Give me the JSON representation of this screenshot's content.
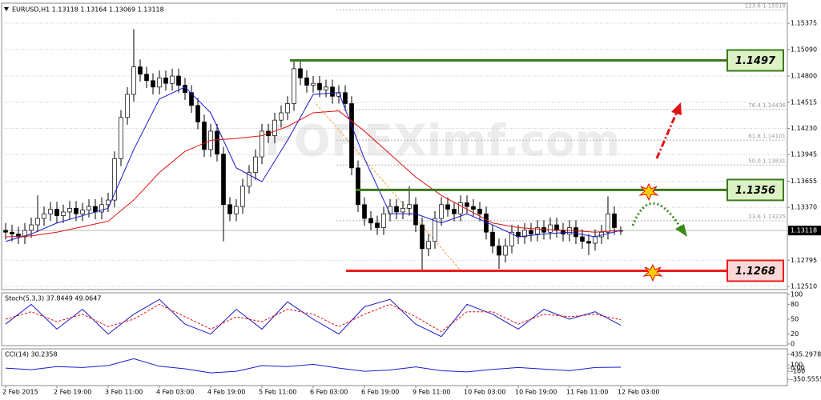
{
  "chart_data": [
    {
      "type": "candlestick",
      "title": "EURUSD,H1  1.13118 1.13164 1.13069 1.13118",
      "watermark": "FOREXimf.com",
      "categories": [
        "2 Feb 2015",
        null,
        null,
        null,
        null,
        null,
        null,
        null,
        "2 Feb 19:00",
        null,
        null,
        null,
        null,
        null,
        null,
        null,
        "3 Feb 11:00",
        null,
        null,
        null,
        null,
        null,
        null,
        null,
        "4 Feb 03:00",
        null,
        null,
        null,
        null,
        null,
        null,
        null,
        "4 Feb 19:00",
        null,
        null,
        null,
        null,
        null,
        null,
        null,
        "5 Feb 11:00",
        null,
        null,
        null,
        null,
        null,
        null,
        null,
        "6 Feb 03:00",
        null,
        null,
        null,
        null,
        null,
        null,
        null,
        "6 Feb 19:00",
        null,
        null,
        null,
        null,
        null,
        null,
        null,
        "9 Feb 11:00",
        null,
        null,
        null,
        null,
        null,
        null,
        null,
        "10 Feb 03:00",
        null,
        null,
        null,
        null,
        null,
        null,
        null,
        "10 Feb 19:00",
        null,
        null,
        null,
        null,
        null,
        null,
        null,
        "11 Feb 11:00",
        null,
        null,
        null,
        null,
        null,
        null,
        null,
        "12 Feb 03:00"
      ],
      "open": [
        1.1312,
        1.131,
        1.1308,
        1.1305,
        1.1312,
        1.1318,
        1.1325,
        1.133,
        1.1335,
        1.1328,
        1.1332,
        1.1336,
        1.133,
        1.1334,
        1.1338,
        1.1332,
        1.134,
        1.1345,
        1.139,
        1.1435,
        1.146,
        1.149,
        1.1482,
        1.1475,
        1.1468,
        1.1478,
        1.1472,
        1.148,
        1.147,
        1.1462,
        1.1448,
        1.143,
        1.14,
        1.142,
        1.1395,
        1.134,
        1.133,
        1.1338,
        1.136,
        1.1375,
        1.1392,
        1.142,
        1.1415,
        1.1432,
        1.144,
        1.145,
        1.1488,
        1.1478,
        1.147,
        1.1472,
        1.1465,
        1.1468,
        1.1458,
        1.1462,
        1.145,
        1.138,
        1.134,
        1.1325,
        1.132,
        1.1315,
        1.133,
        1.1338,
        1.1332,
        1.1336,
        1.134,
        1.1318,
        1.1292,
        1.13,
        1.1325,
        1.134,
        1.1335,
        1.133,
        1.1342,
        1.1338,
        1.1335,
        1.133,
        1.131,
        1.1295,
        1.1285,
        1.1295,
        1.131,
        1.1305,
        1.1312,
        1.1308,
        1.1315,
        1.131,
        1.1318,
        1.1312,
        1.1308,
        1.1315,
        1.1305,
        1.13,
        1.1298,
        1.1305,
        1.131,
        1.133,
        1.13118
      ],
      "high": [
        1.132,
        1.1318,
        1.1316,
        1.132,
        1.1326,
        1.135,
        1.1338,
        1.1343,
        1.1343,
        1.134,
        1.1344,
        1.1344,
        1.1342,
        1.1346,
        1.1346,
        1.1348,
        1.1353,
        1.1398,
        1.1443,
        1.1468,
        1.1531,
        1.1498,
        1.149,
        1.1483,
        1.1486,
        1.1486,
        1.1488,
        1.1488,
        1.1478,
        1.147,
        1.1456,
        1.1438,
        1.1428,
        1.1428,
        1.1403,
        1.1348,
        1.1346,
        1.1368,
        1.1383,
        1.14,
        1.1428,
        1.1428,
        1.144,
        1.1448,
        1.1458,
        1.1497,
        1.1496,
        1.1486,
        1.148,
        1.148,
        1.1476,
        1.1476,
        1.147,
        1.147,
        1.1458,
        1.1388,
        1.1348,
        1.1333,
        1.1328,
        1.1338,
        1.1346,
        1.1346,
        1.1344,
        1.136,
        1.1348,
        1.1326,
        1.1308,
        1.1333,
        1.1348,
        1.1348,
        1.1343,
        1.135,
        1.135,
        1.1346,
        1.1343,
        1.1338,
        1.1318,
        1.1303,
        1.1303,
        1.1318,
        1.1318,
        1.132,
        1.132,
        1.1323,
        1.1323,
        1.1326,
        1.1326,
        1.132,
        1.1323,
        1.1323,
        1.1313,
        1.1308,
        1.1313,
        1.1318,
        1.1349,
        1.1338,
        1.13164
      ],
      "low": [
        1.1302,
        1.13,
        1.1297,
        1.1297,
        1.1304,
        1.131,
        1.1317,
        1.1322,
        1.132,
        1.132,
        1.1324,
        1.1322,
        1.1322,
        1.1326,
        1.1324,
        1.1324,
        1.1332,
        1.1337,
        1.1382,
        1.1427,
        1.1452,
        1.1474,
        1.1467,
        1.146,
        1.146,
        1.1464,
        1.1464,
        1.1462,
        1.1454,
        1.144,
        1.1422,
        1.1392,
        1.1392,
        1.1387,
        1.13,
        1.1322,
        1.1322,
        1.133,
        1.1352,
        1.1367,
        1.1384,
        1.1407,
        1.1407,
        1.1424,
        1.1432,
        1.1442,
        1.147,
        1.1462,
        1.1462,
        1.1457,
        1.1457,
        1.145,
        1.145,
        1.1442,
        1.1372,
        1.1332,
        1.1317,
        1.1312,
        1.1307,
        1.1307,
        1.1322,
        1.1324,
        1.1324,
        1.1328,
        1.131,
        1.1268,
        1.1284,
        1.1292,
        1.1317,
        1.1327,
        1.1322,
        1.1322,
        1.133,
        1.1327,
        1.1322,
        1.1302,
        1.1287,
        1.127,
        1.1277,
        1.1287,
        1.1297,
        1.1297,
        1.13,
        1.13,
        1.1302,
        1.1302,
        1.1304,
        1.13,
        1.13,
        1.1297,
        1.1292,
        1.1285,
        1.129,
        1.1297,
        1.1302,
        1.1307,
        1.13069
      ],
      "close": [
        1.131,
        1.1308,
        1.1305,
        1.1312,
        1.1318,
        1.1325,
        1.133,
        1.1335,
        1.1328,
        1.1332,
        1.1336,
        1.133,
        1.1334,
        1.1338,
        1.1332,
        1.134,
        1.1345,
        1.139,
        1.1435,
        1.146,
        1.149,
        1.1482,
        1.1475,
        1.1468,
        1.1478,
        1.1472,
        1.148,
        1.147,
        1.1462,
        1.1448,
        1.143,
        1.14,
        1.142,
        1.1395,
        1.134,
        1.133,
        1.1338,
        1.136,
        1.1375,
        1.1392,
        1.142,
        1.1415,
        1.1432,
        1.144,
        1.145,
        1.1488,
        1.1478,
        1.147,
        1.1472,
        1.1465,
        1.1468,
        1.1458,
        1.1462,
        1.145,
        1.138,
        1.134,
        1.1325,
        1.132,
        1.1315,
        1.133,
        1.1338,
        1.1332,
        1.1336,
        1.134,
        1.1318,
        1.1292,
        1.13,
        1.1325,
        1.134,
        1.1335,
        1.133,
        1.1342,
        1.1338,
        1.1335,
        1.133,
        1.131,
        1.1295,
        1.1285,
        1.1295,
        1.131,
        1.1305,
        1.1312,
        1.1308,
        1.1315,
        1.131,
        1.1318,
        1.1312,
        1.1308,
        1.1315,
        1.1305,
        1.13,
        1.1298,
        1.1305,
        1.131,
        1.133,
        1.1315,
        1.13118
      ],
      "overlays": [
        {
          "color": "#1a1acc",
          "x": [
            0,
            4,
            8,
            12,
            16,
            20,
            24,
            28,
            32,
            36,
            40,
            44,
            48,
            52,
            56,
            60,
            64,
            68,
            72,
            76,
            80,
            84,
            88,
            92,
            96
          ],
          "values": [
            1.13,
            1.1308,
            1.132,
            1.1328,
            1.1336,
            1.14,
            1.1455,
            1.1468,
            1.144,
            1.138,
            1.1365,
            1.141,
            1.146,
            1.1462,
            1.139,
            1.133,
            1.133,
            1.132,
            1.133,
            1.1318,
            1.1305,
            1.1308,
            1.131,
            1.1305,
            1.1312
          ]
        },
        {
          "color": "#e01010",
          "x": [
            0,
            4,
            8,
            12,
            16,
            20,
            24,
            28,
            32,
            36,
            40,
            44,
            48,
            52,
            56,
            60,
            64,
            68,
            72,
            76,
            80,
            84,
            88,
            92,
            96
          ],
          "values": [
            1.1305,
            1.1306,
            1.131,
            1.1316,
            1.1322,
            1.1345,
            1.1375,
            1.1398,
            1.141,
            1.1412,
            1.1415,
            1.1425,
            1.144,
            1.1442,
            1.142,
            1.1395,
            1.137,
            1.135,
            1.1335,
            1.132,
            1.1315,
            1.1313,
            1.1312,
            1.131,
            1.1312
          ]
        }
      ],
      "levels": [
        {
          "value": 1.1497,
          "color": "#3c7a1c"
        },
        {
          "value": 1.1356,
          "color": "#3c7a1c"
        },
        {
          "value": 1.1268,
          "color": "#ee1c1c"
        }
      ],
      "fib": [
        {
          "text": "123.6  1.15518",
          "value": 1.15518
        },
        {
          "text": "76.4  1.14436",
          "value": 1.14436
        },
        {
          "text": "61.8  1.14101",
          "value": 1.14101
        },
        {
          "text": "50.0  1.13831",
          "value": 1.13831
        },
        {
          "text": "23.6  1.13225",
          "value": 1.13225
        }
      ],
      "current_price": 1.13118,
      "ylim": [
        1.12475,
        1.15593
      ],
      "yticks": [
        1.15375,
        {
          "value": 1.1509,
          "label": "1.15090"
        },
        {
          "value": 1.148,
          "label": "1.14800"
        },
        1.14515,
        {
          "value": 1.1423,
          "label": "1.14230"
        },
        1.13945,
        1.13655,
        {
          "value": 1.1337,
          "label": "1.13370"
        },
        1.12795,
        {
          "value": 1.1251,
          "label": "1.12510"
        }
      ],
      "grid": true
    },
    {
      "type": "line",
      "title": "Stoch(5,3,3) 37.8449 49.0647",
      "ylim": [
        0,
        100
      ],
      "yticks": [
        0,
        20,
        50,
        80,
        100
      ],
      "series": [
        {
          "color": "#1a1acc",
          "x": [
            0,
            4,
            8,
            12,
            16,
            20,
            24,
            28,
            32,
            36,
            40,
            44,
            48,
            52,
            56,
            60,
            64,
            68,
            72,
            76,
            80,
            84,
            88,
            92,
            96
          ],
          "values": [
            40,
            80,
            30,
            70,
            20,
            60,
            90,
            40,
            20,
            70,
            30,
            85,
            50,
            20,
            75,
            90,
            40,
            15,
            80,
            60,
            30,
            70,
            50,
            65,
            37.8449
          ]
        },
        {
          "color": "#e01010",
          "dash": true,
          "x": [
            0,
            4,
            8,
            12,
            16,
            20,
            24,
            28,
            32,
            36,
            40,
            44,
            48,
            52,
            56,
            60,
            64,
            68,
            72,
            76,
            80,
            84,
            88,
            92,
            96
          ],
          "values": [
            50,
            65,
            45,
            60,
            35,
            50,
            80,
            55,
            30,
            55,
            45,
            70,
            60,
            35,
            60,
            80,
            55,
            25,
            65,
            65,
            40,
            60,
            55,
            60,
            49.0647
          ]
        }
      ]
    },
    {
      "type": "line",
      "title": "CCI(14) 30.2358",
      "ylim": [
        -350.5555,
        435.2978
      ],
      "yticks": [
        435.2978,
        100,
        {
          "value": 0,
          "label": "0.00"
        },
        -100,
        -350.5555
      ],
      "series": [
        {
          "color": "#1a1acc",
          "x": [
            0,
            4,
            8,
            12,
            16,
            20,
            24,
            28,
            32,
            36,
            40,
            44,
            48,
            52,
            56,
            60,
            64,
            68,
            72,
            76,
            80,
            84,
            88,
            92,
            96
          ],
          "values": [
            0,
            -50,
            50,
            20,
            80,
            300,
            60,
            -20,
            -150,
            -100,
            80,
            50,
            120,
            0,
            -100,
            -60,
            40,
            -80,
            -120,
            -40,
            20,
            -30,
            -80,
            20,
            30.2358
          ]
        }
      ]
    }
  ]
}
